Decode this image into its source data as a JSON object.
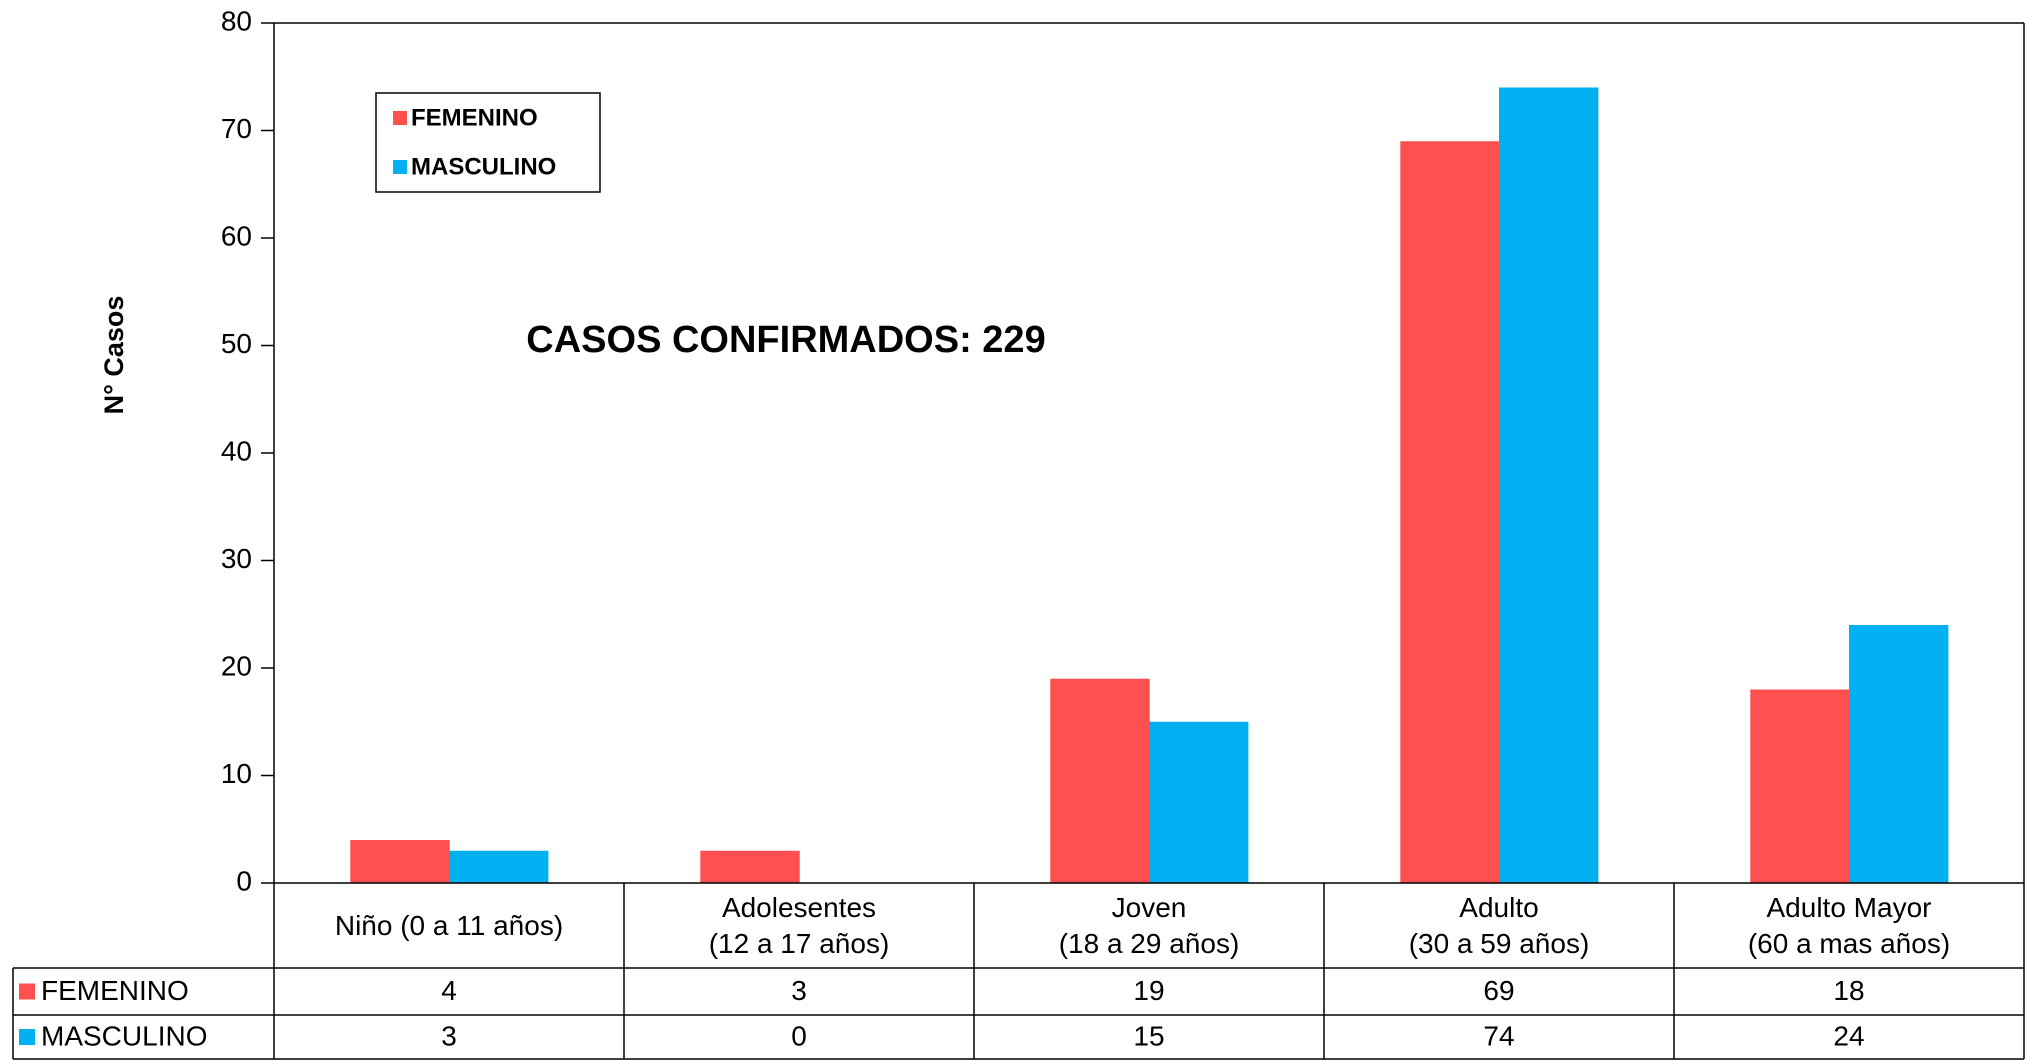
{
  "chart_data": {
    "type": "bar",
    "y_label": "N° Casos",
    "annotation": "CASOS CONFIRMADOS: 229",
    "categories": [
      "Niño (0 a 11 años)",
      "Adolesentes\n(12 a 17 años)",
      "Joven\n(18 a 29 años)",
      "Adulto\n(30 a 59 años)",
      "Adulto Mayor\n(60 a mas años)"
    ],
    "series": [
      {
        "name": "FEMENINO",
        "color": "#ff5050",
        "values": [
          4,
          3,
          19,
          69,
          18
        ]
      },
      {
        "name": "MASCULINO",
        "color": "#00b0f0",
        "values": [
          3,
          0,
          15,
          74,
          24
        ]
      }
    ],
    "ylim": [
      0,
      80
    ],
    "yticks": [
      0,
      10,
      20,
      30,
      40,
      50,
      60,
      70,
      80
    ],
    "grid": false,
    "legend": "top-left",
    "data_table": true
  }
}
